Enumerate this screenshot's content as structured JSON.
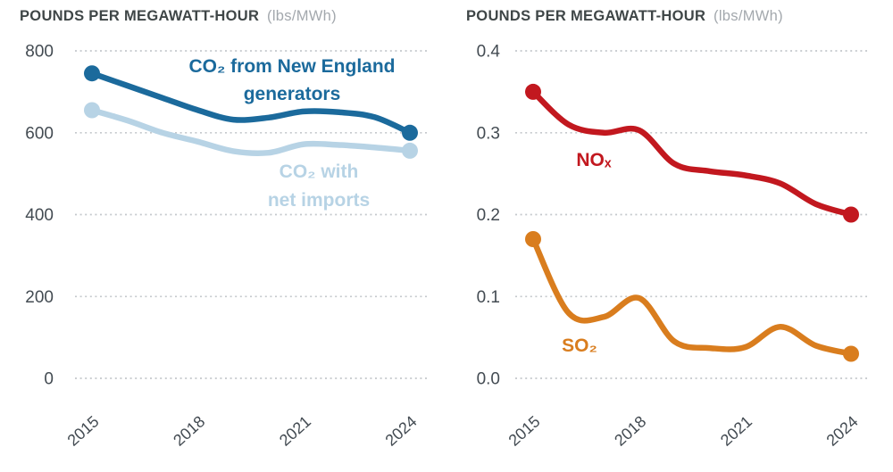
{
  "colors": {
    "background": "#ffffff",
    "title_text": "#3f4647",
    "unit_text": "#a3a8ad",
    "tick_text": "#434b52",
    "gridline": "#c4c8cc",
    "co2_generators": "#1b6a9c",
    "co2_net_imports": "#b7d3e5",
    "nox": "#c2181f",
    "so2": "#d97d1e"
  },
  "chart_data": [
    {
      "type": "line",
      "title": "POUNDS PER MEGAWATT-HOUR",
      "unit_label": "(lbs/MWh)",
      "x": [
        2015,
        2016,
        2017,
        2018,
        2019,
        2020,
        2021,
        2022,
        2023,
        2024
      ],
      "x_tick_labels": [
        "2015",
        "2018",
        "2021",
        "2024"
      ],
      "ylim": [
        0,
        800
      ],
      "y_ticks": [
        800,
        600,
        400,
        200,
        0
      ],
      "y_tick_labels": [
        "800",
        "600",
        "400",
        "200",
        "0"
      ],
      "grid": "dotted-horizontal",
      "legend_position": "inline-annotations",
      "series": [
        {
          "name": "co2-from-new-england-generators",
          "label_lines": [
            "CO₂ from New England",
            "generators"
          ],
          "color": "#1b6a9c",
          "values": [
            745,
            715,
            685,
            655,
            632,
            637,
            652,
            650,
            638,
            600
          ],
          "endpoint_dots": true
        },
        {
          "name": "co2-with-net-imports",
          "label_lines": [
            "CO₂ with",
            "net imports"
          ],
          "color": "#b7d3e5",
          "values": [
            655,
            630,
            600,
            578,
            555,
            551,
            572,
            570,
            564,
            556
          ],
          "endpoint_dots": true
        }
      ]
    },
    {
      "type": "line",
      "title": "POUNDS PER MEGAWATT-HOUR",
      "unit_label": "(lbs/MWh)",
      "x": [
        2015,
        2016,
        2017,
        2018,
        2019,
        2020,
        2021,
        2022,
        2023,
        2024
      ],
      "x_tick_labels": [
        "2015",
        "2018",
        "2021",
        "2024"
      ],
      "ylim": [
        0,
        0.4
      ],
      "y_ticks": [
        0.4,
        0.3,
        0.2,
        0.1,
        0
      ],
      "y_tick_labels": [
        "0.4",
        "0.3",
        "0.2",
        "0.1",
        "0.0"
      ],
      "grid": "dotted-horizontal",
      "legend_position": "inline-annotations",
      "series": [
        {
          "name": "nox",
          "label_lines": [
            "NOₓ"
          ],
          "color": "#c2181f",
          "values": [
            0.35,
            0.31,
            0.3,
            0.303,
            0.262,
            0.253,
            0.248,
            0.238,
            0.213,
            0.2
          ],
          "endpoint_dots": true
        },
        {
          "name": "so2",
          "label_lines": [
            "SO₂"
          ],
          "color": "#d97d1e",
          "values": [
            0.17,
            0.08,
            0.075,
            0.098,
            0.045,
            0.037,
            0.038,
            0.063,
            0.04,
            0.03
          ],
          "endpoint_dots": true
        }
      ]
    }
  ]
}
